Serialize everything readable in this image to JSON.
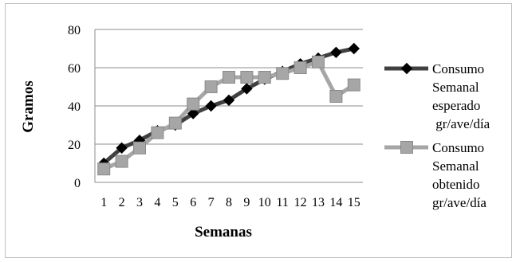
{
  "chart_data": {
    "type": "line",
    "xlabel": "Semanas",
    "ylabel": "Gramos",
    "ylim": [
      0,
      80
    ],
    "yticks": [
      "0",
      "20",
      "40",
      "60",
      "80"
    ],
    "categories": [
      "1",
      "2",
      "3",
      "4",
      "5",
      "6",
      "7",
      "8",
      "9",
      "10",
      "11",
      "12",
      "13",
      "14",
      "15"
    ],
    "grid": "horizontal",
    "legend_position": "right",
    "series": [
      {
        "name": "Consumo Semanal esperado gr/ave/día",
        "legend_lines": [
          "Consumo",
          "Semanal",
          "esperado",
          " gr/ave/día"
        ],
        "color": "#404040",
        "marker": "diamond",
        "values": [
          10,
          18,
          22,
          27,
          30,
          36,
          40,
          43,
          49,
          54,
          58,
          62,
          65,
          68,
          70
        ]
      },
      {
        "name": "Consumo Semanal obtenido gr/ave/día",
        "legend_lines": [
          "Consumo",
          "Semanal",
          "obtenido",
          "gr/ave/día"
        ],
        "color": "#a6a6a6",
        "marker": "square",
        "values": [
          7,
          11,
          18,
          26,
          31,
          41,
          50,
          55,
          55,
          55,
          57,
          60,
          63,
          45,
          51
        ]
      }
    ]
  }
}
